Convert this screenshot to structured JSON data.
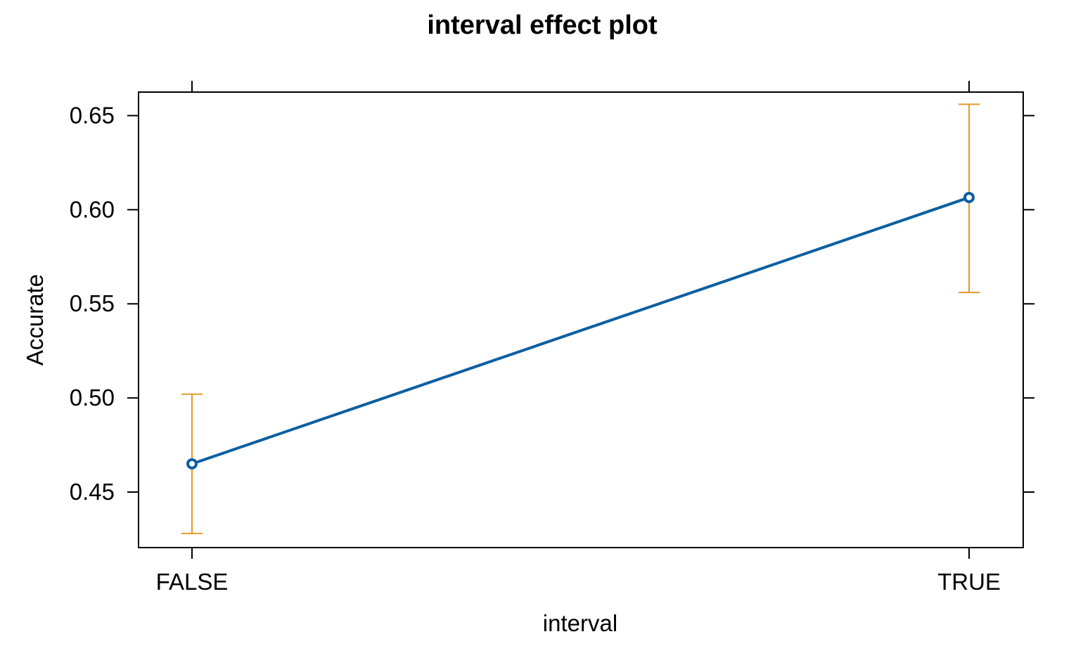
{
  "chart_data": {
    "type": "line",
    "title": "interval effect plot",
    "xlabel": "interval",
    "ylabel": "Accurate",
    "categories": [
      "FALSE",
      "TRUE"
    ],
    "series": [
      {
        "values": [
          0.465,
          0.6065
        ],
        "lower": [
          0.428,
          0.556
        ],
        "upper": [
          0.502,
          0.656
        ]
      }
    ],
    "yticks": [
      "0.45",
      "0.50",
      "0.55",
      "0.60",
      "0.65"
    ],
    "ylim": [
      0.4205,
      0.6625
    ],
    "grid": false,
    "colors": {
      "line": "#0b5fa0",
      "error_bar": "#e49a27",
      "axis": "#000000"
    }
  }
}
